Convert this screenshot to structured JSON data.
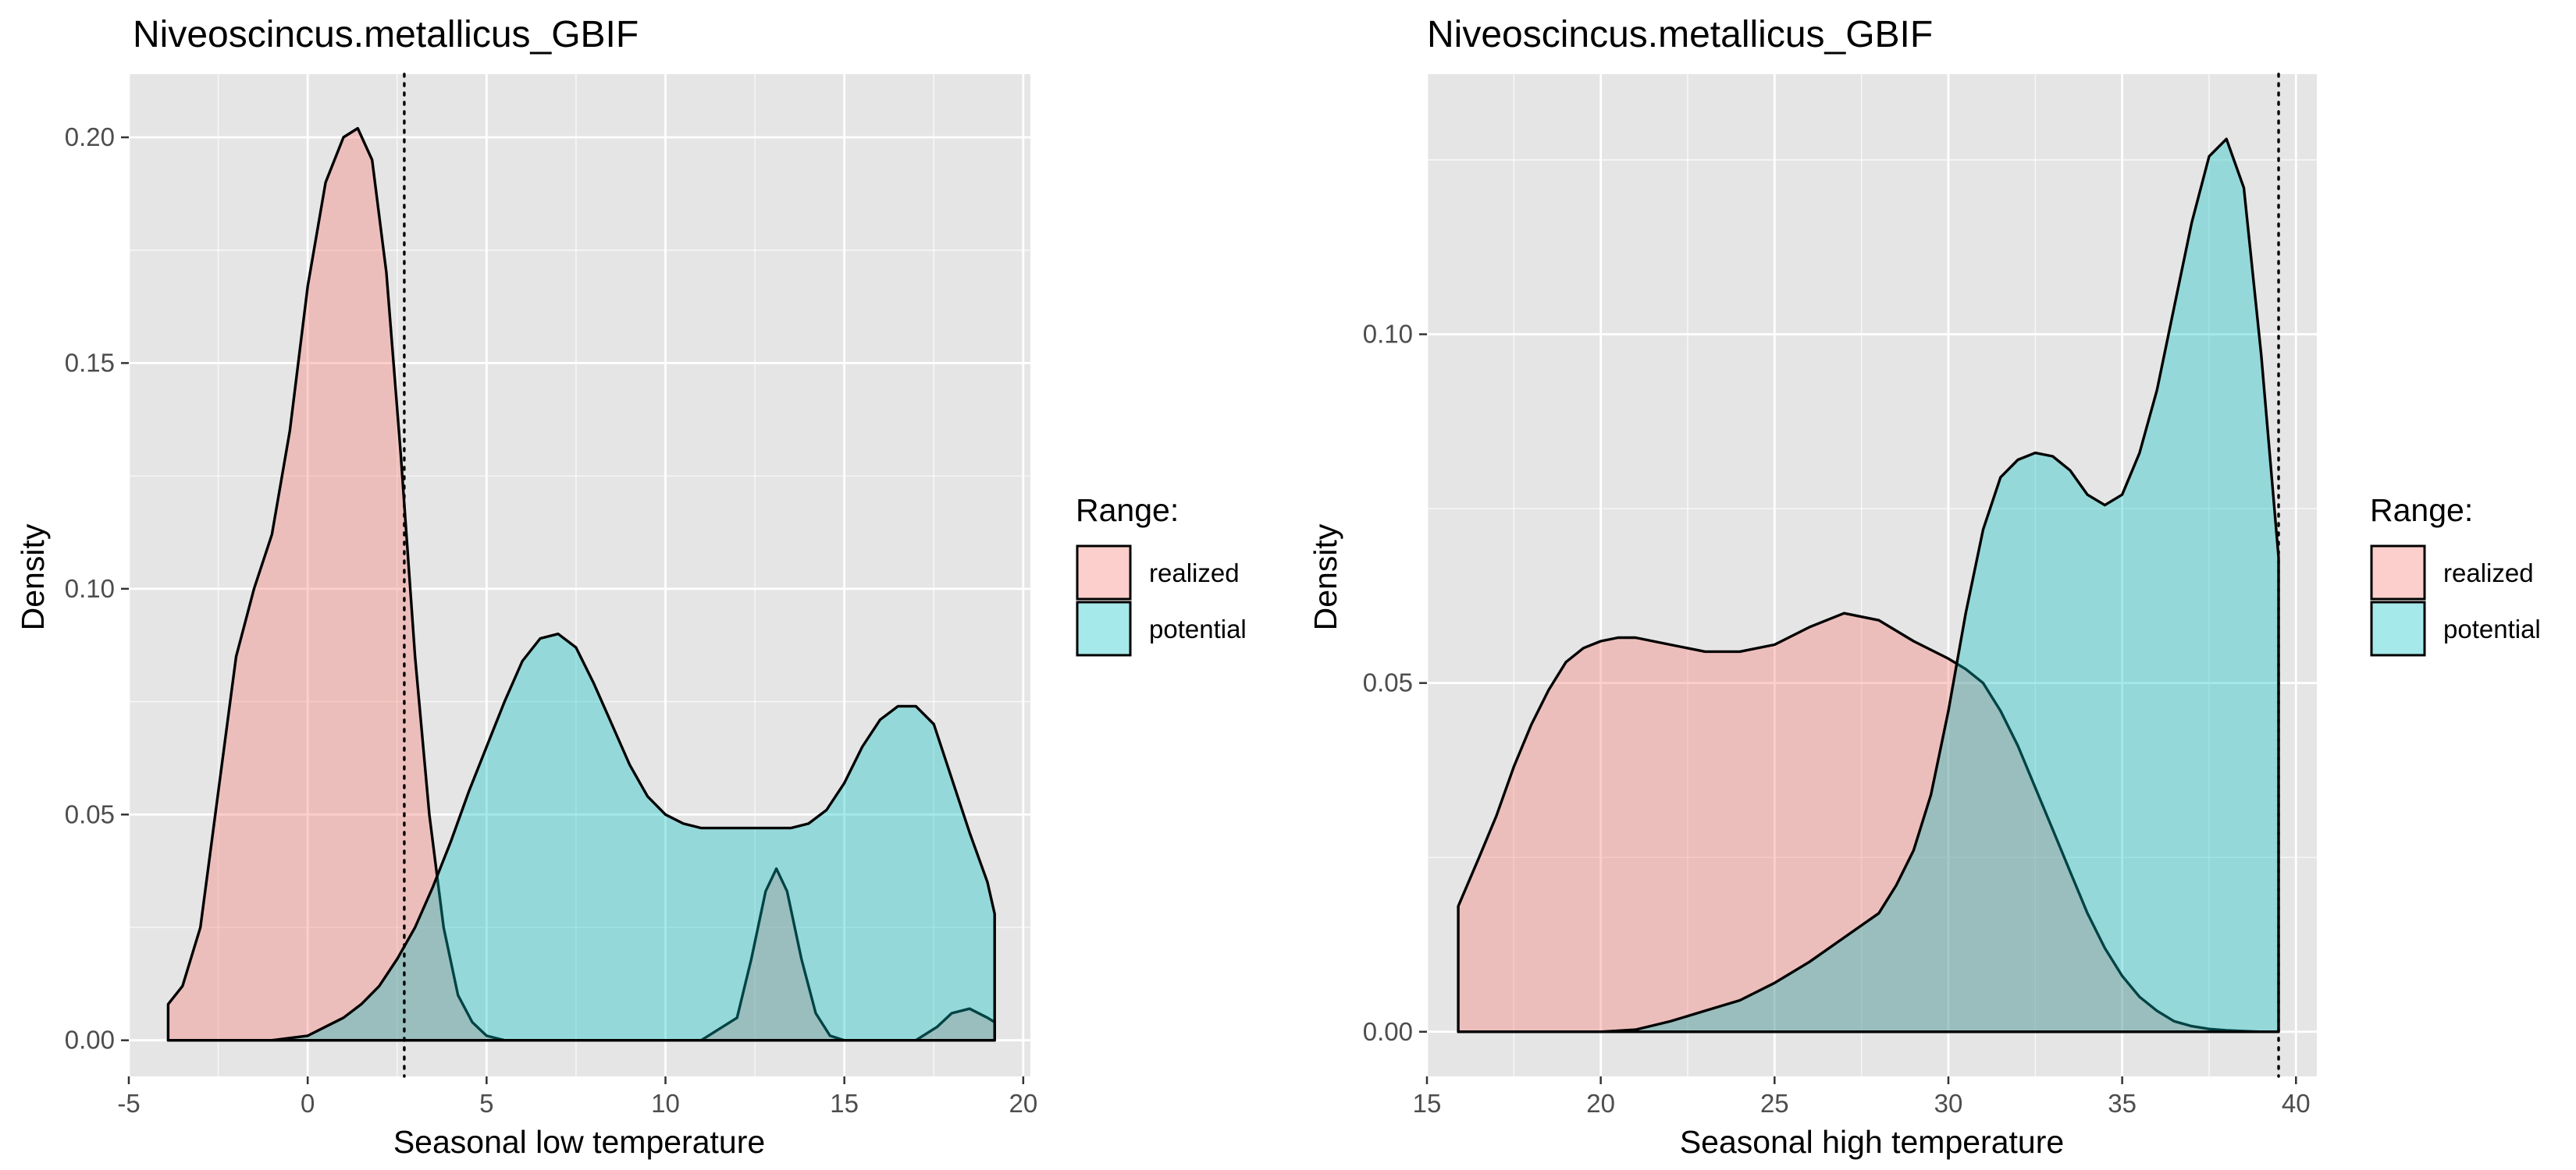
{
  "colors": {
    "realized": "#F8766D",
    "potential": "#00BFC4",
    "fill_alpha": 0.35
  },
  "chart_data": [
    {
      "type": "area",
      "title": "Niveoscincus.metallicus_GBIF",
      "xlabel": "Seasonal low temperature",
      "ylabel": "Density",
      "xlim": [
        -5,
        20.2
      ],
      "ylim": [
        -0.008,
        0.214
      ],
      "xticks": [
        -5,
        0,
        5,
        10,
        15,
        20
      ],
      "xtick_labels": [
        "-5",
        "0",
        "5",
        "10",
        "15",
        "20"
      ],
      "yticks": [
        0.0,
        0.05,
        0.1,
        0.15,
        0.2
      ],
      "ytick_labels": [
        "0.00",
        "0.05",
        "0.10",
        "0.15",
        "0.20"
      ],
      "grid": true,
      "legend": {
        "title": "Range:",
        "placement": "right"
      },
      "vline": 2.7,
      "series": [
        {
          "name": "realized",
          "x": [
            -3.9,
            -3.5,
            -3.0,
            -2.5,
            -2.0,
            -1.5,
            -1.0,
            -0.5,
            0.0,
            0.5,
            1.0,
            1.4,
            1.8,
            2.2,
            2.6,
            3.0,
            3.4,
            3.8,
            4.2,
            4.6,
            5.0,
            5.5,
            6.0,
            7.0,
            8.0,
            9.0,
            10.0,
            11.0,
            12.0,
            12.4,
            12.8,
            13.1,
            13.4,
            13.8,
            14.2,
            14.6,
            15.0,
            16.0,
            17.0,
            17.6,
            18.0,
            18.5,
            19.0,
            19.2
          ],
          "y": [
            0.008,
            0.012,
            0.025,
            0.055,
            0.085,
            0.1,
            0.112,
            0.135,
            0.167,
            0.19,
            0.2,
            0.202,
            0.195,
            0.17,
            0.13,
            0.085,
            0.05,
            0.025,
            0.01,
            0.004,
            0.001,
            0.0,
            0.0,
            0.0,
            0.0,
            0.0,
            0.0,
            0.0,
            0.005,
            0.018,
            0.033,
            0.038,
            0.033,
            0.018,
            0.006,
            0.001,
            0.0,
            0.0,
            0.0,
            0.003,
            0.006,
            0.007,
            0.005,
            0.004
          ]
        },
        {
          "name": "potential",
          "x": [
            -3.9,
            -3.0,
            -2.0,
            -1.0,
            -0.5,
            0.0,
            0.5,
            1.0,
            1.5,
            2.0,
            2.5,
            3.0,
            3.5,
            4.0,
            4.5,
            5.0,
            5.5,
            6.0,
            6.5,
            7.0,
            7.5,
            8.0,
            8.5,
            9.0,
            9.5,
            10.0,
            10.5,
            11.0,
            11.5,
            12.0,
            12.5,
            13.0,
            13.5,
            14.0,
            14.5,
            15.0,
            15.5,
            16.0,
            16.5,
            17.0,
            17.5,
            18.0,
            18.5,
            19.0,
            19.2
          ],
          "y": [
            0.0,
            0.0,
            0.0,
            0.0,
            0.0005,
            0.001,
            0.003,
            0.005,
            0.008,
            0.012,
            0.018,
            0.025,
            0.034,
            0.044,
            0.055,
            0.065,
            0.075,
            0.084,
            0.089,
            0.09,
            0.087,
            0.079,
            0.07,
            0.061,
            0.054,
            0.05,
            0.048,
            0.047,
            0.047,
            0.047,
            0.047,
            0.047,
            0.047,
            0.048,
            0.051,
            0.057,
            0.065,
            0.071,
            0.074,
            0.074,
            0.07,
            0.058,
            0.046,
            0.035,
            0.028
          ]
        }
      ]
    },
    {
      "type": "area",
      "title": "Niveoscincus.metallicus_GBIF",
      "xlabel": "Seasonal high temperature",
      "ylabel": "Density",
      "xlim": [
        15.0,
        40.6
      ],
      "ylim": [
        -0.0064,
        0.1373
      ],
      "xticks": [
        15,
        20,
        25,
        30,
        35,
        40
      ],
      "xtick_labels": [
        "15",
        "20",
        "25",
        "30",
        "35",
        "40"
      ],
      "yticks": [
        0.0,
        0.05,
        0.1
      ],
      "ytick_labels": [
        "0.00",
        "0.05",
        "0.10"
      ],
      "grid": true,
      "legend": {
        "title": "Range:",
        "placement": "right"
      },
      "vline": 39.5,
      "series": [
        {
          "name": "realized",
          "x": [
            15.9,
            16.5,
            17.0,
            17.5,
            18.0,
            18.5,
            19.0,
            19.5,
            20.0,
            20.5,
            21.0,
            22.0,
            23.0,
            24.0,
            25.0,
            26.0,
            27.0,
            28.0,
            29.0,
            30.0,
            30.5,
            31.0,
            31.5,
            32.0,
            32.5,
            33.0,
            33.5,
            34.0,
            34.5,
            35.0,
            35.5,
            36.0,
            36.5,
            37.0,
            37.5,
            38.0,
            38.5,
            39.0,
            39.5
          ],
          "y": [
            0.018,
            0.025,
            0.031,
            0.038,
            0.044,
            0.049,
            0.053,
            0.055,
            0.056,
            0.0565,
            0.0565,
            0.0555,
            0.0545,
            0.0545,
            0.0555,
            0.058,
            0.06,
            0.059,
            0.056,
            0.0535,
            0.052,
            0.05,
            0.046,
            0.041,
            0.035,
            0.029,
            0.023,
            0.017,
            0.012,
            0.008,
            0.005,
            0.003,
            0.0015,
            0.0008,
            0.0004,
            0.0002,
            0.0001,
            0.0,
            0.0
          ]
        },
        {
          "name": "potential",
          "x": [
            15.9,
            18.0,
            20.0,
            21.0,
            22.0,
            23.0,
            24.0,
            25.0,
            26.0,
            27.0,
            28.0,
            28.5,
            29.0,
            29.5,
            30.0,
            30.5,
            31.0,
            31.5,
            32.0,
            32.5,
            33.0,
            33.5,
            34.0,
            34.5,
            35.0,
            35.5,
            36.0,
            36.5,
            37.0,
            37.5,
            38.0,
            38.5,
            39.0,
            39.5
          ],
          "y": [
            0.0,
            0.0,
            0.0,
            0.0003,
            0.0015,
            0.003,
            0.0045,
            0.007,
            0.01,
            0.0135,
            0.017,
            0.021,
            0.026,
            0.034,
            0.046,
            0.06,
            0.072,
            0.0795,
            0.082,
            0.083,
            0.0825,
            0.0805,
            0.077,
            0.0755,
            0.077,
            0.083,
            0.092,
            0.104,
            0.116,
            0.1255,
            0.128,
            0.121,
            0.097,
            0.068
          ]
        }
      ]
    }
  ]
}
